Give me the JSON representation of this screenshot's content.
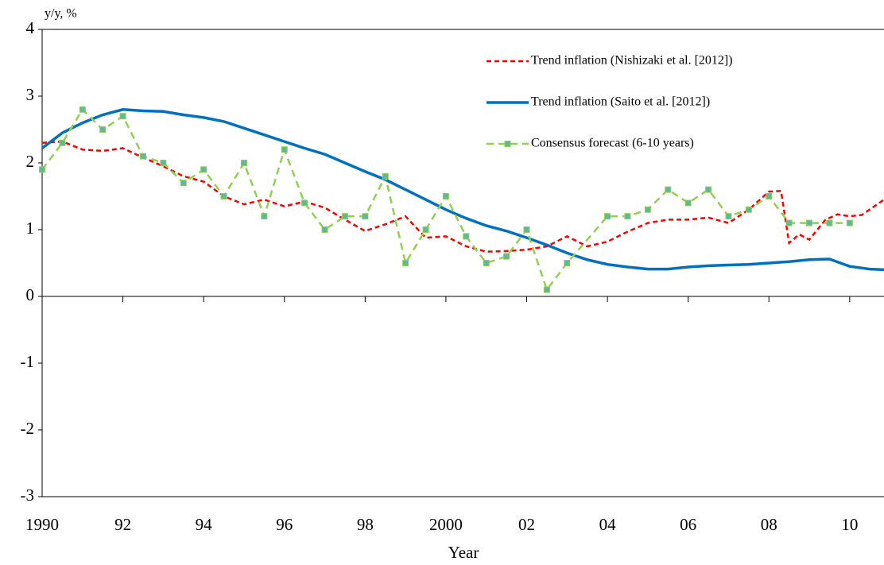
{
  "chart_data": {
    "type": "line",
    "y_label": "y/y, %",
    "x_label": "Year",
    "xlim": [
      1990,
      2010.85
    ],
    "ylim": [
      -3,
      4
    ],
    "yticks": [
      -3,
      -2,
      -1,
      0,
      1,
      2,
      3,
      4
    ],
    "xticks": [
      {
        "value": 1990,
        "label": "1990"
      },
      {
        "value": 1992,
        "label": "92"
      },
      {
        "value": 1994,
        "label": "94"
      },
      {
        "value": 1996,
        "label": "96"
      },
      {
        "value": 1998,
        "label": "98"
      },
      {
        "value": 2000,
        "label": "2000"
      },
      {
        "value": 2002,
        "label": "02"
      },
      {
        "value": 2004,
        "label": "04"
      },
      {
        "value": 2006,
        "label": "06"
      },
      {
        "value": 2008,
        "label": "08"
      },
      {
        "value": 2010,
        "label": "10"
      }
    ],
    "legend": "upper right",
    "series": [
      {
        "name": "Trend inflation (Nishizaki et al. [2012])",
        "color": "#ff0000",
        "style": "dashed",
        "x": [
          1990,
          1990.5,
          1991,
          1991.5,
          1992,
          1992.5,
          1993,
          1993.5,
          1994,
          1994.5,
          1995,
          1995.5,
          1996,
          1996.5,
          1997,
          1997.5,
          1998,
          1998.5,
          1999,
          1999.5,
          2000,
          2000.5,
          2001,
          2001.5,
          2002,
          2002.5,
          2003,
          2003.5,
          2004,
          2004.5,
          2005,
          2005.5,
          2006,
          2006.5,
          2007,
          2007.5,
          2008,
          2008.3,
          2008.5,
          2008.75,
          2009,
          2009.4,
          2009.7,
          2010,
          2010.3,
          2010.85
        ],
        "values": [
          2.3,
          2.32,
          2.2,
          2.18,
          2.22,
          2.08,
          1.95,
          1.8,
          1.72,
          1.5,
          1.38,
          1.45,
          1.35,
          1.42,
          1.33,
          1.15,
          0.98,
          1.08,
          1.2,
          0.88,
          0.9,
          0.75,
          0.67,
          0.68,
          0.7,
          0.75,
          0.9,
          0.75,
          0.82,
          0.97,
          1.1,
          1.15,
          1.15,
          1.18,
          1.1,
          1.3,
          1.57,
          1.58,
          0.8,
          0.93,
          0.85,
          1.15,
          1.23,
          1.2,
          1.22,
          1.45
        ]
      },
      {
        "name": "Trend inflation (Saito et al. [2012])",
        "color": "#0070c0",
        "style": "solid",
        "x": [
          1990,
          1990.5,
          1991,
          1991.5,
          1992,
          1992.5,
          1993,
          1993.5,
          1994,
          1994.5,
          1995,
          1995.5,
          1996,
          1996.5,
          1997,
          1997.5,
          1998,
          1998.5,
          1999,
          1999.5,
          2000,
          2000.5,
          2001,
          2001.5,
          2002,
          2002.5,
          2003,
          2003.5,
          2004,
          2004.5,
          2005,
          2005.5,
          2006,
          2006.5,
          2007,
          2007.5,
          2008,
          2008.5,
          2009,
          2009.5,
          2010,
          2010.5,
          2010.85
        ],
        "values": [
          2.22,
          2.45,
          2.6,
          2.72,
          2.8,
          2.78,
          2.77,
          2.72,
          2.68,
          2.62,
          2.52,
          2.42,
          2.32,
          2.22,
          2.13,
          2.0,
          1.87,
          1.75,
          1.6,
          1.45,
          1.3,
          1.17,
          1.06,
          0.98,
          0.88,
          0.77,
          0.65,
          0.55,
          0.48,
          0.44,
          0.41,
          0.41,
          0.44,
          0.46,
          0.47,
          0.48,
          0.5,
          0.52,
          0.55,
          0.56,
          0.45,
          0.41,
          0.4
        ]
      },
      {
        "name": "Consensus forecast (6-10 years)",
        "color": "#92d050",
        "marker_color": "#5fb89a",
        "style": "dashed",
        "markers": true,
        "x": [
          1990,
          1990.5,
          1991,
          1991.5,
          1992,
          1992.5,
          1993,
          1993.5,
          1994,
          1994.5,
          1995,
          1995.5,
          1996,
          1996.5,
          1997,
          1997.5,
          1998,
          1998.5,
          1999,
          1999.5,
          2000,
          2000.5,
          2001,
          2001.5,
          2002,
          2002.5,
          2003,
          2004,
          2004.5,
          2005,
          2005.5,
          2006,
          2006.5,
          2007,
          2007.5,
          2008,
          2008.5,
          2009,
          2009.5,
          2010
        ],
        "values": [
          1.9,
          2.3,
          2.8,
          2.5,
          2.7,
          2.1,
          2.0,
          1.7,
          1.9,
          1.5,
          2.0,
          1.2,
          2.2,
          1.4,
          1.0,
          1.2,
          1.2,
          1.8,
          0.5,
          1.0,
          1.5,
          0.9,
          0.5,
          0.6,
          1.0,
          0.1,
          0.5,
          1.2,
          1.2,
          1.3,
          1.6,
          1.4,
          1.6,
          1.2,
          1.3,
          1.5,
          1.1,
          1.1,
          1.1,
          1.1
        ]
      }
    ]
  }
}
